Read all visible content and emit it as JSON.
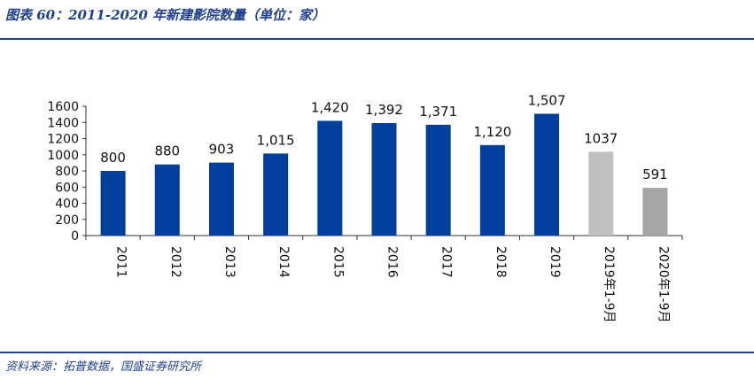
{
  "header": {
    "title": "图表 60：2011-2020 年新建影院数量（单位：家）"
  },
  "footer": {
    "source": "资料来源：拓普数据，国盛证券研究所"
  },
  "colors": {
    "accent": "#1f3f8f",
    "bar_blue": "#003f9e",
    "bar_light_gray": "#c0c0c0",
    "bar_dark_gray": "#a6a6a6"
  },
  "chart_data": {
    "type": "bar",
    "title": "",
    "xlabel": "",
    "ylabel": "",
    "ylim": [
      0,
      1600
    ],
    "yticks": [
      0,
      200,
      400,
      600,
      800,
      1000,
      1200,
      1400,
      1600
    ],
    "grid": false,
    "legend": "none",
    "categories": [
      "2011",
      "2012",
      "2013",
      "2014",
      "2015",
      "2016",
      "2017",
      "2018",
      "2019",
      "2019年1-9月",
      "2020年1-9月"
    ],
    "values": [
      800,
      880,
      903,
      1015,
      1420,
      1392,
      1371,
      1120,
      1507,
      1037,
      591
    ],
    "data_labels": [
      "800",
      "880",
      "903",
      "1,015",
      "1,420",
      "1,392",
      "1,371",
      "1,120",
      "1,507",
      "1037",
      "591"
    ],
    "bar_colors": [
      "#003f9e",
      "#003f9e",
      "#003f9e",
      "#003f9e",
      "#003f9e",
      "#003f9e",
      "#003f9e",
      "#003f9e",
      "#003f9e",
      "#c0c0c0",
      "#a6a6a6"
    ]
  }
}
